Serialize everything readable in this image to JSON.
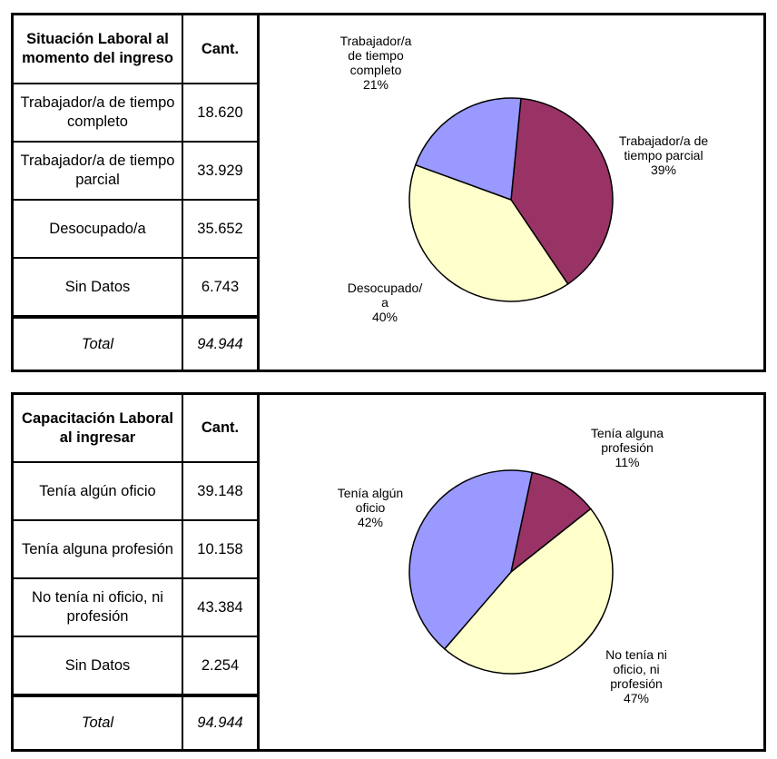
{
  "chart_data": [
    {
      "type": "pie",
      "title": "Situación Laboral al momento del ingreso",
      "header": [
        "Situación Laboral al momento del ingreso",
        "Cant."
      ],
      "rows": [
        [
          "Trabajador/a de tiempo completo",
          "18.620"
        ],
        [
          "Trabajador/a de tiempo parcial",
          "33.929"
        ],
        [
          "Desocupado/a",
          "35.652"
        ],
        [
          "Sin Datos",
          "6.743"
        ]
      ],
      "total": [
        "Total",
        "94.944"
      ],
      "slices": [
        {
          "label": [
            "Trabajador/a de",
            "tiempo parcial"
          ],
          "pct": "39%",
          "value": 39,
          "color": "#993366"
        },
        {
          "label": [
            "Desocupado/",
            "a"
          ],
          "pct": "40%",
          "value": 40,
          "color": "#FFFFCC"
        },
        {
          "label": [
            "Trabajador/a",
            "de tiempo",
            "completo"
          ],
          "pct": "21%",
          "value": 21,
          "color": "#9999FF"
        }
      ],
      "start_deg": 5.6
    },
    {
      "type": "pie",
      "title": "Capacitación Laboral al ingresar",
      "header": [
        "Capacitación Laboral al ingresar",
        "Cant."
      ],
      "rows": [
        [
          "Tenía algún oficio",
          "39.148"
        ],
        [
          "Tenía alguna profesión",
          "10.158"
        ],
        [
          "No tenía ni oficio, ni profesión",
          "43.384"
        ],
        [
          "Sin Datos",
          "2.254"
        ]
      ],
      "total": [
        "Total",
        "94.944"
      ],
      "slices": [
        {
          "label": [
            "Tenía alguna",
            "profesión"
          ],
          "pct": "11%",
          "value": 11,
          "color": "#993366"
        },
        {
          "label": [
            "No tenía ni",
            "oficio, ni",
            "profesión"
          ],
          "pct": "47%",
          "value": 47,
          "color": "#FFFFCC"
        },
        {
          "label": [
            "Tenía algún",
            "oficio"
          ],
          "pct": "42%",
          "value": 42,
          "color": "#9999FF"
        }
      ],
      "start_deg": 12
    }
  ]
}
